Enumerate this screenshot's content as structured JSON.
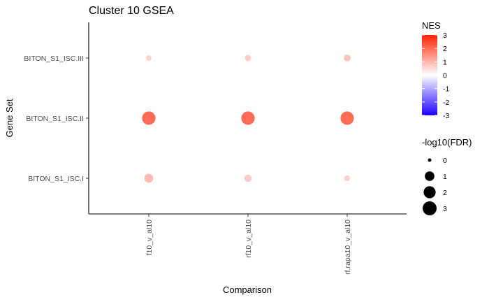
{
  "chart_data": {
    "type": "scatter",
    "title": "Cluster 10 GSEA",
    "xlabel": "Comparison",
    "ylabel": "Gene Set",
    "x_categories": [
      "f10_v_al10",
      "rf10_v_al10",
      "rf.rapa10_v_al10"
    ],
    "y_categories": [
      "BITON_S1_ISC.I",
      "BITON_S1_ISC.II",
      "BITON_S1_ISC.III"
    ],
    "points": [
      {
        "x": "f10_v_al10",
        "y": "BITON_S1_ISC.III",
        "nes": 0.6,
        "neglog10_fdr": 0.1
      },
      {
        "x": "rf10_v_al10",
        "y": "BITON_S1_ISC.III",
        "nes": 0.7,
        "neglog10_fdr": 0.2
      },
      {
        "x": "rf.rapa10_v_al10",
        "y": "BITON_S1_ISC.III",
        "nes": 0.8,
        "neglog10_fdr": 0.3
      },
      {
        "x": "f10_v_al10",
        "y": "BITON_S1_ISC.II",
        "nes": 2.0,
        "neglog10_fdr": 2.7
      },
      {
        "x": "rf10_v_al10",
        "y": "BITON_S1_ISC.II",
        "nes": 2.0,
        "neglog10_fdr": 2.7
      },
      {
        "x": "rf.rapa10_v_al10",
        "y": "BITON_S1_ISC.II",
        "nes": 2.0,
        "neglog10_fdr": 2.7
      },
      {
        "x": "f10_v_al10",
        "y": "BITON_S1_ISC.I",
        "nes": 0.9,
        "neglog10_fdr": 0.8
      },
      {
        "x": "rf10_v_al10",
        "y": "BITON_S1_ISC.I",
        "nes": 0.7,
        "neglog10_fdr": 0.4
      },
      {
        "x": "rf.rapa10_v_al10",
        "y": "BITON_S1_ISC.I",
        "nes": 0.6,
        "neglog10_fdr": 0.15
      }
    ],
    "color_legend": {
      "title": "NES",
      "ticks": [
        "3",
        "2",
        "1",
        "0",
        "-1",
        "-2",
        "-3"
      ],
      "range": [
        -3,
        3
      ],
      "low_color": "#1a00ff",
      "mid_color": "#ffffff",
      "high_color": "#ff2200"
    },
    "size_legend": {
      "title": "-log10(FDR)",
      "values": [
        "0",
        "1",
        "2",
        "3"
      ]
    },
    "grid": false,
    "legend_position": "right"
  }
}
